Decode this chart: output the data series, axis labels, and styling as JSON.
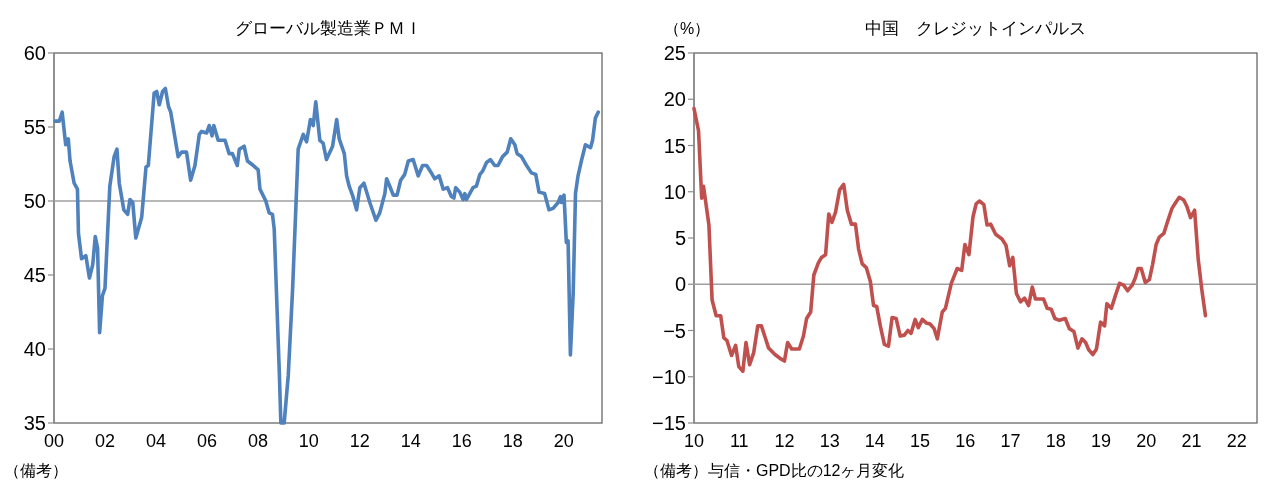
{
  "chart_data": [
    {
      "type": "line",
      "title": "グローバル製造業ＰＭＩ",
      "xlim": [
        2000,
        2021.5
      ],
      "ylim": [
        35,
        60
      ],
      "xticks": [
        {
          "value": 2000,
          "label": "00"
        },
        {
          "value": 2002,
          "label": "02"
        },
        {
          "value": 2004,
          "label": "04"
        },
        {
          "value": 2006,
          "label": "06"
        },
        {
          "value": 2008,
          "label": "08"
        },
        {
          "value": 2010,
          "label": "10"
        },
        {
          "value": 2012,
          "label": "12"
        },
        {
          "value": 2014,
          "label": "14"
        },
        {
          "value": 2016,
          "label": "16"
        },
        {
          "value": 2018,
          "label": "18"
        },
        {
          "value": 2020,
          "label": "20"
        }
      ],
      "yticks": [
        35,
        40,
        45,
        50,
        55,
        60
      ],
      "ref_lines": [
        {
          "axis": "y",
          "value": 50,
          "color": "#a0a0a0"
        }
      ],
      "annotations": [
        "（備考）"
      ],
      "series": [
        {
          "color": "#4f81bd",
          "x": [
            2000.04,
            2000.21,
            2000.32,
            2000.46,
            2000.56,
            2000.63,
            2000.79,
            2000.92,
            2000.96,
            2001.08,
            2001.25,
            2001.39,
            2001.52,
            2001.62,
            2001.71,
            2001.79,
            2001.9,
            2002.0,
            2002.19,
            2002.36,
            2002.47,
            2002.56,
            2002.74,
            2002.89,
            2002.98,
            2003.09,
            2003.21,
            2003.44,
            2003.61,
            2003.7,
            2003.93,
            2004.03,
            2004.13,
            2004.26,
            2004.37,
            2004.49,
            2004.58,
            2004.87,
            2005.01,
            2005.2,
            2005.36,
            2005.53,
            2005.7,
            2005.79,
            2005.99,
            2006.09,
            2006.2,
            2006.27,
            2006.44,
            2006.71,
            2006.87,
            2007.0,
            2007.19,
            2007.27,
            2007.46,
            2007.59,
            2007.82,
            2008.01,
            2008.08,
            2008.31,
            2008.44,
            2008.57,
            2008.64,
            2008.84,
            2008.9,
            2009.03,
            2009.19,
            2009.36,
            2009.58,
            2009.78,
            2009.91,
            2010.06,
            2010.17,
            2010.27,
            2010.43,
            2010.56,
            2010.69,
            2010.93,
            2011.09,
            2011.19,
            2011.39,
            2011.48,
            2011.58,
            2011.71,
            2011.87,
            2012.0,
            2012.16,
            2012.39,
            2012.63,
            2012.78,
            2012.98,
            2013.05,
            2013.15,
            2013.31,
            2013.46,
            2013.6,
            2013.76,
            2013.9,
            2014.09,
            2014.29,
            2014.46,
            2014.62,
            2014.77,
            2014.94,
            2015.11,
            2015.27,
            2015.44,
            2015.59,
            2015.69,
            2015.76,
            2015.92,
            2016.05,
            2016.12,
            2016.18,
            2016.31,
            2016.44,
            2016.57,
            2016.71,
            2016.81,
            2016.97,
            2017.12,
            2017.29,
            2017.42,
            2017.6,
            2017.78,
            2017.92,
            2018.08,
            2018.17,
            2018.34,
            2018.54,
            2018.73,
            2018.9,
            2019.03,
            2019.25,
            2019.42,
            2019.58,
            2019.78,
            2019.87,
            2019.91,
            2020.01,
            2020.1,
            2020.17,
            2020.26,
            2020.37,
            2020.46,
            2020.56,
            2020.69,
            2020.85,
            2020.95,
            2021.05,
            2021.13,
            2021.24,
            2021.35
          ],
          "values": [
            55.4,
            55.4,
            56.0,
            53.8,
            54.2,
            52.7,
            51.2,
            50.8,
            47.8,
            46.1,
            46.3,
            44.8,
            45.7,
            47.6,
            46.8,
            41.1,
            43.6,
            44.1,
            51.0,
            53.0,
            53.5,
            51.2,
            49.4,
            49.1,
            50.1,
            49.9,
            47.5,
            48.9,
            52.3,
            52.4,
            57.3,
            57.4,
            56.5,
            57.4,
            57.6,
            56.4,
            56.0,
            53.0,
            53.3,
            53.3,
            51.4,
            52.4,
            54.5,
            54.7,
            54.6,
            55.1,
            54.4,
            55.1,
            54.1,
            54.1,
            53.2,
            53.2,
            52.4,
            53.5,
            53.7,
            52.7,
            52.4,
            52.1,
            50.8,
            50.0,
            49.2,
            49.1,
            48.1,
            38.4,
            35.0,
            35.0,
            38.2,
            44.0,
            53.5,
            54.5,
            54.0,
            55.5,
            55.1,
            56.7,
            54.1,
            53.9,
            52.8,
            53.7,
            55.5,
            54.2,
            53.2,
            51.7,
            51.0,
            50.4,
            49.4,
            50.9,
            51.2,
            49.9,
            48.7,
            49.2,
            50.5,
            51.5,
            51.1,
            50.4,
            50.4,
            51.4,
            51.8,
            52.7,
            52.8,
            51.7,
            52.4,
            52.4,
            52.0,
            51.5,
            51.7,
            50.8,
            50.9,
            50.3,
            50.2,
            50.9,
            50.6,
            50.1,
            50.5,
            50.1,
            50.5,
            50.9,
            51.0,
            51.8,
            52.0,
            52.6,
            52.8,
            52.4,
            52.4,
            53.0,
            53.3,
            54.2,
            53.8,
            53.2,
            53.0,
            52.4,
            51.9,
            51.8,
            50.6,
            50.5,
            49.4,
            49.5,
            49.9,
            50.3,
            49.9,
            50.4,
            47.2,
            47.3,
            39.6,
            43.8,
            50.5,
            51.7,
            52.7,
            53.8,
            53.7,
            53.6,
            54.1,
            55.6,
            56.0
          ]
        }
      ]
    },
    {
      "type": "line",
      "title": "中国　クレジットインパルス",
      "ylabel": "（%）",
      "xlim": [
        2010,
        2022.45
      ],
      "ylim": [
        -15,
        25
      ],
      "xticks": [
        {
          "value": 2010,
          "label": "10"
        },
        {
          "value": 2011,
          "label": "11"
        },
        {
          "value": 2012,
          "label": "12"
        },
        {
          "value": 2013,
          "label": "13"
        },
        {
          "value": 2014,
          "label": "14"
        },
        {
          "value": 2015,
          "label": "15"
        },
        {
          "value": 2016,
          "label": "16"
        },
        {
          "value": 2017,
          "label": "17"
        },
        {
          "value": 2018,
          "label": "18"
        },
        {
          "value": 2019,
          "label": "19"
        },
        {
          "value": 2020,
          "label": "20"
        },
        {
          "value": 2021,
          "label": "21"
        },
        {
          "value": 2022,
          "label": "22"
        }
      ],
      "yticks": [
        {
          "value": -15,
          "label": "−15"
        },
        {
          "value": -10,
          "label": "−10"
        },
        {
          "value": -5,
          "label": "−5"
        },
        0,
        5,
        10,
        15,
        20,
        25
      ],
      "ref_lines": [
        {
          "axis": "y",
          "value": 0,
          "color": "#a0a0a0"
        }
      ],
      "annotations": [
        "（備考）与信・GPD比の12ヶ月変化"
      ],
      "series": [
        {
          "color": "#c0504d",
          "x": [
            2010.0,
            2010.1,
            2010.17,
            2010.21,
            2010.33,
            2010.4,
            2010.49,
            2010.59,
            2010.66,
            2010.73,
            2010.83,
            2010.92,
            2010.99,
            2011.08,
            2011.15,
            2011.23,
            2011.32,
            2011.41,
            2011.49,
            2011.65,
            2011.79,
            2011.93,
            2012.0,
            2012.07,
            2012.16,
            2012.33,
            2012.42,
            2012.49,
            2012.58,
            2012.65,
            2012.75,
            2012.82,
            2012.91,
            2012.98,
            2013.05,
            2013.13,
            2013.22,
            2013.31,
            2013.39,
            2013.48,
            2013.57,
            2013.64,
            2013.72,
            2013.81,
            2013.9,
            2013.97,
            2014.04,
            2014.12,
            2014.21,
            2014.3,
            2014.38,
            2014.47,
            2014.56,
            2014.65,
            2014.73,
            2014.8,
            2014.89,
            2014.96,
            2015.05,
            2015.14,
            2015.22,
            2015.31,
            2015.38,
            2015.49,
            2015.56,
            2015.69,
            2015.82,
            2015.92,
            2015.99,
            2016.08,
            2016.17,
            2016.24,
            2016.31,
            2016.41,
            2016.48,
            2016.56,
            2016.67,
            2016.81,
            2016.9,
            2016.98,
            2017.05,
            2017.13,
            2017.22,
            2017.31,
            2017.4,
            2017.48,
            2017.55,
            2017.73,
            2017.81,
            2017.9,
            2017.98,
            2018.08,
            2018.21,
            2018.3,
            2018.4,
            2018.49,
            2018.58,
            2018.66,
            2018.73,
            2018.82,
            2018.9,
            2018.99,
            2019.08,
            2019.13,
            2019.23,
            2019.32,
            2019.41,
            2019.5,
            2019.59,
            2019.69,
            2019.76,
            2019.82,
            2019.89,
            2019.98,
            2020.07,
            2020.14,
            2020.22,
            2020.29,
            2020.39,
            2020.48,
            2020.57,
            2020.66,
            2020.73,
            2020.83,
            2020.9,
            2020.98,
            2021.07,
            2021.15,
            2021.23,
            2021.31
          ],
          "values": [
            19.0,
            16.6,
            9.3,
            10.6,
            6.4,
            -1.7,
            -3.4,
            -3.4,
            -5.8,
            -6.1,
            -7.7,
            -6.6,
            -8.9,
            -9.4,
            -6.3,
            -8.7,
            -7.4,
            -4.5,
            -4.5,
            -6.9,
            -7.6,
            -8.1,
            -8.3,
            -6.3,
            -7.0,
            -7.0,
            -5.6,
            -3.7,
            -3.0,
            1.0,
            2.3,
            2.9,
            3.2,
            7.6,
            6.7,
            7.8,
            10.2,
            10.8,
            8.0,
            6.5,
            6.5,
            3.8,
            2.2,
            1.8,
            0.3,
            -2.3,
            -2.4,
            -4.5,
            -6.5,
            -6.7,
            -3.6,
            -3.7,
            -5.6,
            -5.5,
            -5.0,
            -5.3,
            -3.8,
            -4.7,
            -3.8,
            -4.2,
            -4.3,
            -4.8,
            -5.9,
            -3.0,
            -2.6,
            0.1,
            1.7,
            1.5,
            4.3,
            3.2,
            7.3,
            8.7,
            9.0,
            8.6,
            6.4,
            6.5,
            5.4,
            4.9,
            4.2,
            2.0,
            2.9,
            -1.0,
            -1.9,
            -1.5,
            -2.3,
            -0.3,
            -1.6,
            -1.6,
            -2.6,
            -2.7,
            -3.7,
            -3.9,
            -3.7,
            -4.8,
            -5.1,
            -6.9,
            -5.9,
            -6.3,
            -7.1,
            -7.6,
            -7.0,
            -4.1,
            -4.5,
            -2.1,
            -2.6,
            -1.2,
            0.1,
            -0.1,
            -0.7,
            -0.1,
            0.7,
            1.7,
            1.7,
            0.2,
            0.5,
            2.1,
            4.3,
            5.1,
            5.5,
            6.9,
            8.2,
            8.9,
            9.4,
            9.1,
            8.4,
            7.2,
            8.0,
            2.7,
            -0.6,
            -3.4
          ]
        }
      ]
    }
  ]
}
